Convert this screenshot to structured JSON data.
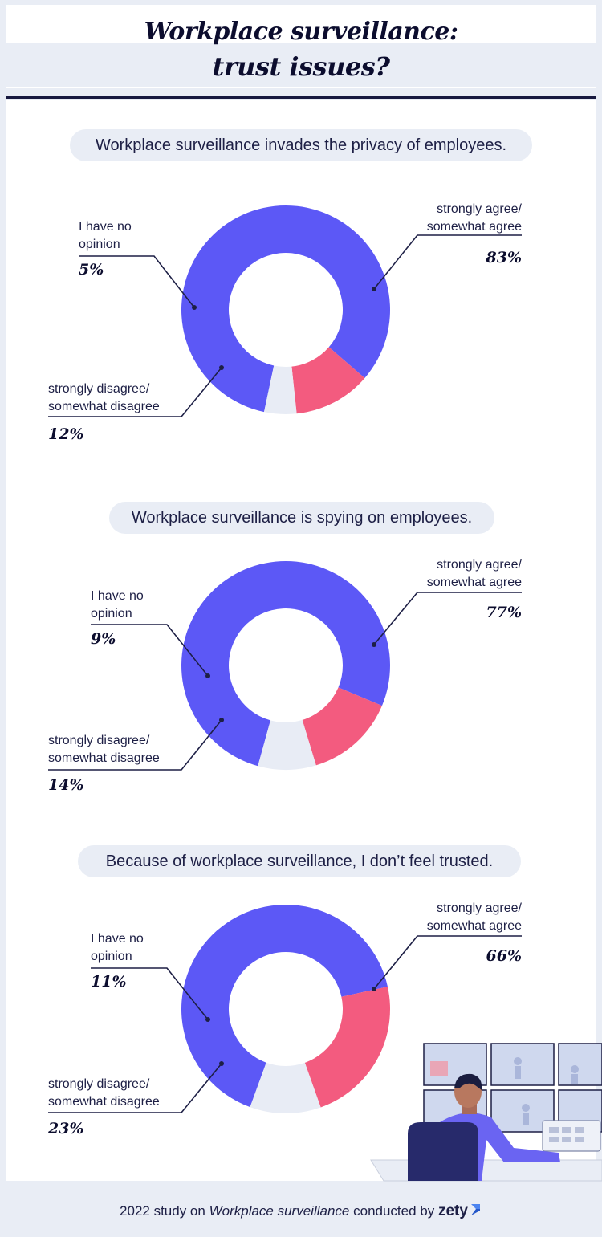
{
  "title": {
    "line1": "Workplace surveillance:",
    "line2": "trust issues?"
  },
  "colors": {
    "agree": "#5c58f6",
    "disagree": "#f35b7f",
    "no_opinion": "#e8ecf5",
    "ink": "#1d1f45"
  },
  "chart_data": [
    {
      "type": "pie",
      "title": "Workplace surveillance invades the privacy of employees.",
      "slices": [
        {
          "key": "agree",
          "label_line1": "strongly agree/",
          "label_line2": "somewhat agree",
          "value": 83,
          "display": "83%"
        },
        {
          "key": "disagree",
          "label_line1": "strongly disagree/",
          "label_line2": "somewhat disagree",
          "value": 12,
          "display": "12%"
        },
        {
          "key": "no_opinion",
          "label_line1": "I have no",
          "label_line2": "opinion",
          "value": 5,
          "display": "5%"
        }
      ]
    },
    {
      "type": "pie",
      "title": "Workplace surveillance is spying on employees.",
      "slices": [
        {
          "key": "agree",
          "label_line1": "strongly agree/",
          "label_line2": "somewhat agree",
          "value": 77,
          "display": "77%"
        },
        {
          "key": "disagree",
          "label_line1": "strongly disagree/",
          "label_line2": "somewhat disagree",
          "value": 14,
          "display": "14%"
        },
        {
          "key": "no_opinion",
          "label_line1": "I have no",
          "label_line2": "opinion",
          "value": 9,
          "display": "9%"
        }
      ]
    },
    {
      "type": "pie",
      "title": "Because of workplace surveillance, I don’t feel trusted.",
      "slices": [
        {
          "key": "agree",
          "label_line1": "strongly agree/",
          "label_line2": "somewhat agree",
          "value": 66,
          "display": "66%"
        },
        {
          "key": "disagree",
          "label_line1": "strongly disagree/",
          "label_line2": "somewhat disagree",
          "value": 23,
          "display": "23%"
        },
        {
          "key": "no_opinion",
          "label_line1": "I have no",
          "label_line2": "opinion",
          "value": 11,
          "display": "11%"
        }
      ]
    }
  ],
  "footer": {
    "prefix": "2022 study on",
    "study": "Workplace surveillance",
    "suffix": "conducted by",
    "brand": "zety"
  }
}
